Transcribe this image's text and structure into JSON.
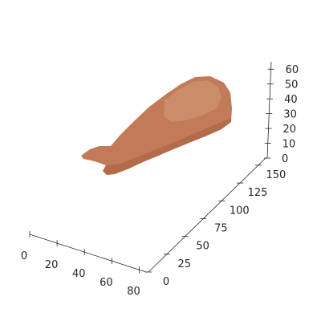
{
  "chart_data": {
    "type": "scatter",
    "title": "",
    "surface_color": "#c27a58",
    "highlight_color": "#d49a78",
    "shadow_color": "#a8603f",
    "axes": {
      "x": {
        "label": "",
        "range": [
          0,
          85
        ],
        "ticks": [
          0,
          20,
          40,
          60,
          80
        ]
      },
      "y": {
        "label": "",
        "range": [
          0,
          160
        ],
        "ticks": [
          0,
          25,
          50,
          75,
          100,
          125,
          150
        ]
      },
      "z": {
        "label": "",
        "range": [
          0,
          65
        ],
        "ticks": [
          0,
          10,
          20,
          30,
          40,
          50,
          60
        ]
      }
    },
    "object": "3D scanned point cloud of an organic elongated shape (reconstructed mesh/points)"
  }
}
